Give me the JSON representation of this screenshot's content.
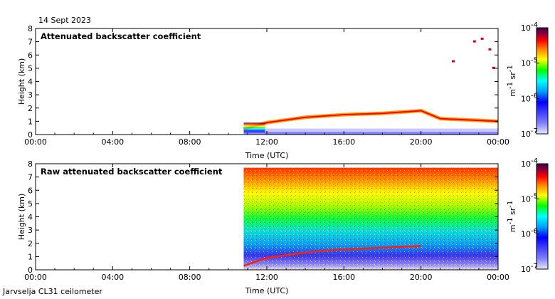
{
  "header": {
    "date": "14 Sept 2023"
  },
  "footer": {
    "site": "Jarvselja CL31 ceilometer"
  },
  "colorbar": {
    "ticks": [
      "10",
      "10",
      "10",
      "10"
    ],
    "exponents": [
      "-4",
      "-5",
      "-6",
      "-7"
    ],
    "unit_main": "m",
    "unit_exp1": "-1",
    "unit_mid": " sr",
    "unit_exp2": "-1",
    "colors": [
      "#e8e8ff",
      "#8080ff",
      "#0000ff",
      "#00a0ff",
      "#00ffff",
      "#00ff00",
      "#ffff00",
      "#ff8000",
      "#ff0000",
      "#800040",
      "#400040"
    ]
  },
  "chart_data": [
    {
      "type": "heatmap",
      "title": "Attenuated backscatter coefficient",
      "xlabel": "Time (UTC)",
      "ylabel": "Height (km)",
      "x_ticks": [
        "00:00",
        "04:00",
        "08:00",
        "12:00",
        "16:00",
        "20:00",
        "00:00"
      ],
      "y_ticks": [
        "0",
        "1",
        "2",
        "3",
        "4",
        "5",
        "6",
        "7",
        "8"
      ],
      "xlim": [
        0,
        24
      ],
      "ylim": [
        0,
        8
      ],
      "color_scale": "log",
      "color_range": [
        1e-07,
        0.0001
      ],
      "data_start_hour": 10.8,
      "boundary_layer_top_km": [
        [
          10.8,
          0.4
        ],
        [
          12,
          0.9
        ],
        [
          14,
          1.3
        ],
        [
          16,
          1.5
        ],
        [
          18,
          1.6
        ],
        [
          20,
          1.8
        ],
        [
          21,
          1.2
        ],
        [
          24,
          1.0
        ]
      ],
      "high_cloud_km": [
        [
          21.6,
          5.5
        ],
        [
          22.7,
          7.0
        ],
        [
          23.1,
          7.2
        ],
        [
          23.5,
          6.4
        ],
        [
          23.7,
          5.0
        ]
      ]
    },
    {
      "type": "heatmap",
      "title": "Raw attenuated backscatter coefficient",
      "xlabel": "Time (UTC)",
      "ylabel": "Height (km)",
      "x_ticks": [
        "00:00",
        "04:00",
        "08:00",
        "12:00",
        "16:00",
        "20:00",
        "00:00"
      ],
      "y_ticks": [
        "0",
        "1",
        "2",
        "3",
        "4",
        "5",
        "6",
        "7",
        "8"
      ],
      "xlim": [
        0,
        24
      ],
      "ylim": [
        0,
        8
      ],
      "color_scale": "log",
      "color_range": [
        1e-07,
        0.0001
      ],
      "data_start_hour": 10.8,
      "data_top_km": 7.7
    }
  ]
}
